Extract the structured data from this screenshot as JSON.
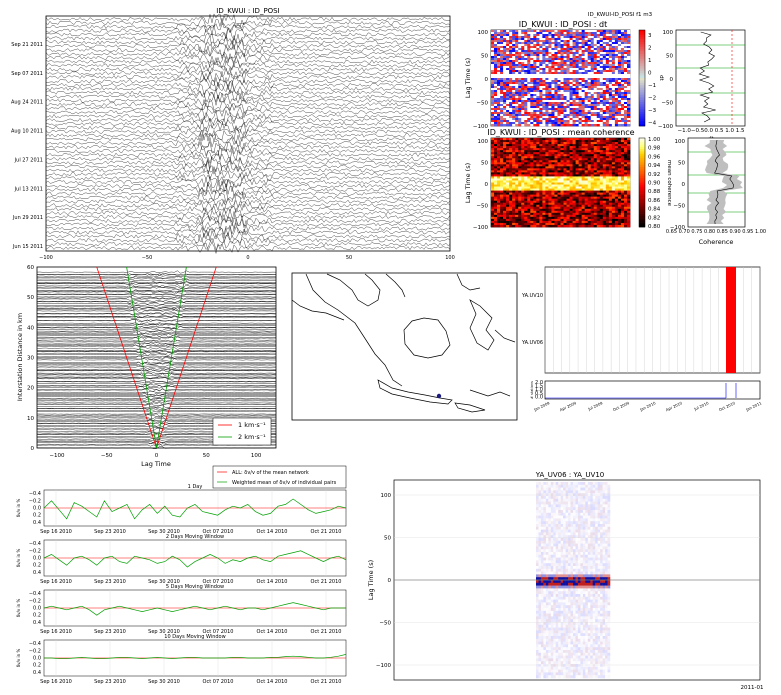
{
  "colors": {
    "red": "#ff0000",
    "green": "#00a000",
    "blue": "#0000ff",
    "black": "#000000",
    "grey": "#bfbfbf"
  },
  "chart_data": [
    {
      "type": "heatmap",
      "id": "waveforms",
      "title": "ID_KWUI : ID_POSI",
      "xticks": [
        "−100",
        "−50",
        "0",
        "50",
        "100"
      ],
      "yticks": [
        "Jun 15 2011",
        "Jun 29 2011",
        "Jul 13 2011",
        "Jul 27 2011",
        "Aug 10 2011",
        "Aug 24 2011",
        "Sep 07 2011",
        "Sep 21 2011"
      ]
    },
    {
      "type": "heatmap",
      "id": "dt",
      "suptitle": "ID_KWUI-ID_POSI f1 m3",
      "title": "ID_KWUI : ID_POSI : dt",
      "ylabel": "Lag Time (s)",
      "yticks": [
        "100",
        "50",
        "0",
        "−50",
        "−100"
      ],
      "colorbar_ticks": [
        "3",
        "2",
        "1",
        "0",
        "−1",
        "−2",
        "−3",
        "−4"
      ],
      "colorbar_label": "dt"
    },
    {
      "type": "line",
      "id": "dt-profile",
      "xlabel": "dt",
      "xticks": "−1.0−0.50.0 0.5 1.0 1.5",
      "yticks": [
        "100",
        "50",
        "0",
        "−50",
        "−100"
      ]
    },
    {
      "type": "heatmap",
      "id": "coherence",
      "title": "ID_KWUI : ID_POSI : mean coherence",
      "ylabel": "Lag Time (s)",
      "yticks": [
        "100",
        "50",
        "0",
        "−50",
        "−100"
      ],
      "colorbar_ticks": [
        "1.00",
        "0.98",
        "0.96",
        "0.94",
        "0.92",
        "0.90",
        "0.88",
        "0.86",
        "0.84",
        "0.82",
        "0.80"
      ],
      "colorbar_label": "mean coherence"
    },
    {
      "type": "line",
      "id": "coherence-profile",
      "xlabel": "Coherence",
      "xticks": "0.65 0.70 0.75 0.80 0.85 0.90 0.95 1.00",
      "yticks": [
        "100",
        "50",
        "0",
        "−50",
        "−100"
      ]
    },
    {
      "type": "line",
      "id": "moveout",
      "ylabel": "Interstation Distance in km",
      "xlabel": "Lag Time",
      "xticks": [
        "−100",
        "−50",
        "0",
        "50",
        "100"
      ],
      "yticks": [
        "0",
        "10",
        "20",
        "30",
        "40",
        "50",
        "60"
      ],
      "xlim": [
        -120,
        120
      ],
      "ylim": [
        0,
        60
      ],
      "series": [
        {
          "name": "1 km·s⁻¹",
          "velocity": 1,
          "color": "#ff0000"
        },
        {
          "name": "2 km·s⁻¹",
          "velocity": 2,
          "color": "#00a000"
        }
      ]
    },
    {
      "type": "map",
      "id": "station-map"
    },
    {
      "type": "bar",
      "id": "availability",
      "rows": [
        "YA.UV10",
        "YA.UV06"
      ],
      "xticks": [
        "Jan 2009",
        "Apr 2009",
        "Jul 2009",
        "Oct 2009",
        "Jan 2010",
        "Apr 2010",
        "Jul 2010",
        "Oct 2010",
        "Jan 2011"
      ],
      "ylabel": "# stations",
      "yticks": [
        "2.0",
        "1.5",
        "1.0",
        "0.5",
        "0.0"
      ]
    },
    {
      "type": "line",
      "id": "dvv",
      "legend": [
        {
          "label": "ALL: δv/v of the mean network",
          "color": "#ff0000"
        },
        {
          "label": "Weighted mean of δv/v of individual pairs",
          "color": "#00a000"
        }
      ],
      "ylabel": "δv/v in %",
      "xticks": [
        "Sep 16 2010",
        "Sep 23 2010",
        "Sep 30 2010",
        "Oct 07 2010",
        "Oct 14 2010",
        "Oct 21 2010"
      ],
      "panels": [
        {
          "title": "1 Day",
          "yticks": [
            "−0.4",
            "−0.2",
            "0.0",
            "0.2",
            "0.4"
          ],
          "values": [
            0.0,
            -0.2,
            0.05,
            0.3,
            -0.15,
            -0.05,
            0.1,
            0.25,
            -0.2,
            0.1,
            0.0,
            -0.1,
            0.3,
            0.05,
            -0.1,
            0.15,
            -0.05,
            0.2,
            0.25,
            0.0,
            -0.1,
            0.1,
            0.15,
            0.2,
            0.05,
            -0.05,
            0.0,
            -0.1,
            0.1,
            0.2,
            0.15,
            -0.05,
            -0.1,
            -0.25,
            -0.1,
            0.05,
            0.15,
            0.1,
            0.05,
            -0.05,
            0.0
          ]
        },
        {
          "title": "2 Days Moving Window",
          "yticks": [
            "−0.4",
            "−0.2",
            "0.0",
            "0.2",
            "0.4"
          ],
          "values": [
            0.0,
            -0.1,
            0.05,
            0.2,
            0.0,
            -0.05,
            0.05,
            0.2,
            0.0,
            -0.05,
            0.1,
            0.15,
            -0.05,
            0.0,
            0.05,
            0.15,
            0.1,
            -0.05,
            0.05,
            0.25,
            0.1,
            0.0,
            -0.1,
            0.0,
            0.15,
            0.05,
            0.1,
            0.0,
            -0.05,
            0.05,
            0.1,
            -0.05,
            -0.1,
            -0.15,
            -0.2,
            -0.1,
            0.0,
            0.1,
            0.0,
            -0.05,
            0.05
          ]
        },
        {
          "title": "5 Days Moving Window",
          "yticks": [
            "−0.4",
            "−0.2",
            "0.0",
            "0.2",
            "0.4"
          ],
          "values": [
            0.0,
            -0.05,
            0.0,
            0.05,
            0.0,
            -0.05,
            0.05,
            0.2,
            0.05,
            0.0,
            -0.05,
            0.0,
            0.05,
            0.1,
            0.05,
            0.0,
            0.05,
            0.1,
            0.05,
            0.0,
            -0.05,
            0.0,
            0.05,
            0.0,
            -0.05,
            0.0,
            0.05,
            0.0,
            0.0,
            0.05,
            0.0,
            -0.05,
            -0.1,
            -0.15,
            -0.1,
            -0.05,
            0.0,
            0.05,
            0.0,
            0.0,
            0.0
          ]
        },
        {
          "title": "10 Days Moving Window",
          "yticks": [
            "−0.4",
            "−0.2",
            "0.0",
            "0.2",
            "0.4"
          ],
          "values": [
            0.0,
            0.0,
            0.02,
            0.02,
            0.0,
            -0.02,
            0.0,
            0.02,
            0.02,
            0.0,
            -0.02,
            -0.02,
            0.0,
            0.02,
            0.0,
            -0.02,
            0.0,
            0.02,
            0.0,
            -0.02,
            -0.02,
            0.0,
            0.0,
            0.0,
            0.0,
            -0.02,
            -0.02,
            0.0,
            0.0,
            0.0,
            -0.02,
            -0.02,
            -0.04,
            -0.05,
            -0.04,
            -0.02,
            0.0,
            0.0,
            -0.02,
            -0.05,
            -0.1
          ]
        }
      ]
    },
    {
      "type": "heatmap",
      "id": "ccf",
      "title": "YA_UV06 : YA_UV10",
      "ylabel": "Lag Time (s)",
      "yticks": [
        "100",
        "50",
        "0",
        "−50",
        "−100"
      ],
      "xtick_label": "2011-01"
    }
  ]
}
